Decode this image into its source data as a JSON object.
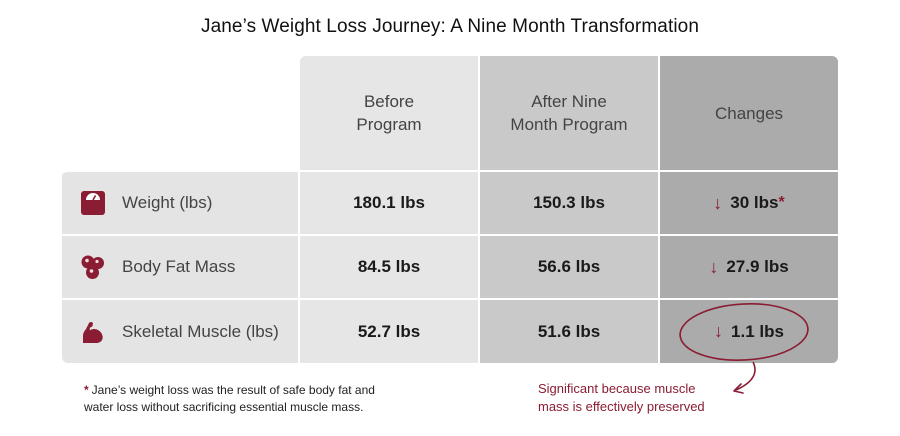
{
  "title": "Jane’s Weight Loss Journey:  A Nine Month Transformation",
  "headers": {
    "before": "Before\nProgram",
    "after": "After Nine\nMonth Program",
    "changes": "Changes"
  },
  "rows": [
    {
      "icon": "scale-icon",
      "label": "Weight (lbs)",
      "before": "180.1 lbs",
      "after": "150.3 lbs",
      "change_arrow": "↓",
      "change": "30 lbs",
      "change_marker": "*"
    },
    {
      "icon": "fat-cells-icon",
      "label": "Body Fat Mass",
      "before": "84.5 lbs",
      "after": "56.6 lbs",
      "change_arrow": "↓",
      "change": "27.9 lbs"
    },
    {
      "icon": "flexed-arm-icon",
      "label": "Skeletal Muscle (lbs)",
      "before": "52.7 lbs",
      "after": "51.6 lbs",
      "change_arrow": "↓",
      "change": "1.1 lbs"
    }
  ],
  "footnote": {
    "marker": "*",
    "line1": "Jane’s weight loss was the result of safe body fat and",
    "line2": "water loss without sacrificing essential muscle mass."
  },
  "annotation": {
    "line1": "Significant because muscle",
    "line2": "mass is effectively preserved"
  },
  "colors": {
    "accent": "#8a1c33",
    "before_column": "#e6e6e6",
    "after_column": "#c9c9c9",
    "changes_column": "#ababab",
    "label_column": "#e4e4e4"
  }
}
